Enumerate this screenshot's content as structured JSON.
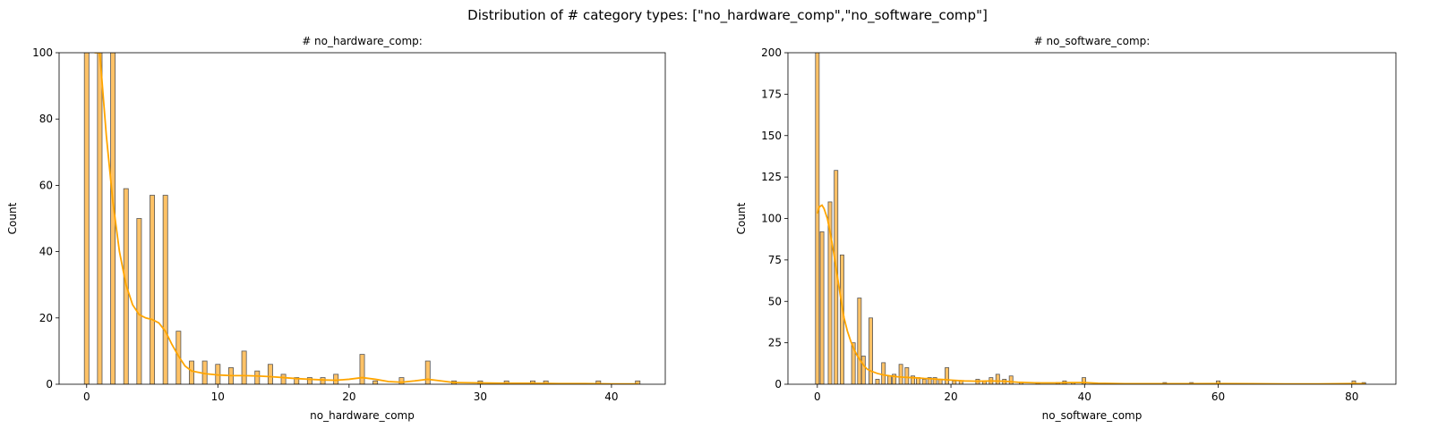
{
  "figure": {
    "suptitle": "Distribution of # category types: [\"no_hardware_comp\",\"no_software_comp\"]",
    "bar_color": "#ffc266",
    "bar_edge": "#555555",
    "kde_color": "#ffa500"
  },
  "chart_data": [
    {
      "type": "bar",
      "title": "# no_hardware_comp:",
      "xlabel": "no_hardware_comp",
      "ylabel": "Count",
      "xlim": [
        -2.1,
        44.1
      ],
      "ylim": [
        0,
        100
      ],
      "xticks": [
        0,
        10,
        20,
        30,
        40
      ],
      "yticks": [
        0,
        20,
        40,
        60,
        80,
        100
      ],
      "bin_width": 0.35,
      "bars": [
        {
          "x": 0,
          "count": 100
        },
        {
          "x": 1,
          "count": 100
        },
        {
          "x": 2,
          "count": 100
        },
        {
          "x": 3,
          "count": 59
        },
        {
          "x": 4,
          "count": 50
        },
        {
          "x": 5,
          "count": 57
        },
        {
          "x": 6,
          "count": 57
        },
        {
          "x": 7,
          "count": 16
        },
        {
          "x": 8,
          "count": 7
        },
        {
          "x": 9,
          "count": 7
        },
        {
          "x": 10,
          "count": 6
        },
        {
          "x": 11,
          "count": 5
        },
        {
          "x": 12,
          "count": 10
        },
        {
          "x": 13,
          "count": 4
        },
        {
          "x": 14,
          "count": 6
        },
        {
          "x": 15,
          "count": 3
        },
        {
          "x": 16,
          "count": 2
        },
        {
          "x": 17,
          "count": 2
        },
        {
          "x": 18,
          "count": 2
        },
        {
          "x": 19,
          "count": 3
        },
        {
          "x": 21,
          "count": 9
        },
        {
          "x": 22,
          "count": 1
        },
        {
          "x": 24,
          "count": 2
        },
        {
          "x": 26,
          "count": 7
        },
        {
          "x": 28,
          "count": 1
        },
        {
          "x": 30,
          "count": 1
        },
        {
          "x": 32,
          "count": 1
        },
        {
          "x": 34,
          "count": 1
        },
        {
          "x": 35,
          "count": 1
        },
        {
          "x": 39,
          "count": 1
        },
        {
          "x": 42,
          "count": 1
        }
      ],
      "kde": [
        [
          0.6,
          124
        ],
        [
          1,
          100
        ],
        [
          1.5,
          75
        ],
        [
          2,
          55
        ],
        [
          2.5,
          40
        ],
        [
          3,
          30
        ],
        [
          3.5,
          24
        ],
        [
          4,
          21
        ],
        [
          4.5,
          20
        ],
        [
          5,
          19.5
        ],
        [
          5.5,
          18.5
        ],
        [
          6,
          16
        ],
        [
          6.5,
          12
        ],
        [
          7,
          8.5
        ],
        [
          7.5,
          5.5
        ],
        [
          8,
          4
        ],
        [
          9,
          3.2
        ],
        [
          10,
          2.8
        ],
        [
          11,
          2.6
        ],
        [
          12,
          2.6
        ],
        [
          13,
          2.5
        ],
        [
          14,
          2.3
        ],
        [
          15,
          2
        ],
        [
          16,
          1.7
        ],
        [
          17,
          1.5
        ],
        [
          18,
          1.3
        ],
        [
          19,
          1.2
        ],
        [
          20,
          1.5
        ],
        [
          21,
          2
        ],
        [
          22,
          1.5
        ],
        [
          23,
          0.8
        ],
        [
          24,
          0.6
        ],
        [
          25,
          1
        ],
        [
          26,
          1.5
        ],
        [
          27,
          1
        ],
        [
          28,
          0.5
        ],
        [
          30,
          0.4
        ],
        [
          32,
          0.3
        ],
        [
          34,
          0.3
        ],
        [
          36,
          0.2
        ],
        [
          38,
          0.2
        ],
        [
          40,
          0.1
        ],
        [
          42,
          0.1
        ]
      ]
    },
    {
      "type": "bar",
      "title": "# no_software_comp:",
      "xlabel": "no_software_comp",
      "ylabel": "Count",
      "xlim": [
        -4.4,
        86.6
      ],
      "ylim": [
        0,
        200
      ],
      "xticks": [
        0,
        20,
        40,
        60,
        80
      ],
      "yticks": [
        0,
        25,
        50,
        75,
        100,
        125,
        150,
        175,
        200
      ],
      "bin_width": 0.55,
      "bars": [
        {
          "x": 0,
          "count": 200
        },
        {
          "x": 0.7,
          "count": 92
        },
        {
          "x": 1.9,
          "count": 110
        },
        {
          "x": 2.8,
          "count": 129
        },
        {
          "x": 3.7,
          "count": 78
        },
        {
          "x": 5.4,
          "count": 25
        },
        {
          "x": 6.3,
          "count": 52
        },
        {
          "x": 6.9,
          "count": 17
        },
        {
          "x": 8,
          "count": 40
        },
        {
          "x": 9,
          "count": 3
        },
        {
          "x": 9.9,
          "count": 13
        },
        {
          "x": 10.8,
          "count": 5
        },
        {
          "x": 11.5,
          "count": 6
        },
        {
          "x": 12.5,
          "count": 12
        },
        {
          "x": 13.4,
          "count": 10
        },
        {
          "x": 14.3,
          "count": 5
        },
        {
          "x": 15.1,
          "count": 4
        },
        {
          "x": 16,
          "count": 3
        },
        {
          "x": 16.8,
          "count": 4
        },
        {
          "x": 17.6,
          "count": 4
        },
        {
          "x": 18.4,
          "count": 3
        },
        {
          "x": 19.4,
          "count": 10
        },
        {
          "x": 20.5,
          "count": 2
        },
        {
          "x": 21.5,
          "count": 2
        },
        {
          "x": 24,
          "count": 3
        },
        {
          "x": 25,
          "count": 2
        },
        {
          "x": 26,
          "count": 4
        },
        {
          "x": 27,
          "count": 6
        },
        {
          "x": 28,
          "count": 3
        },
        {
          "x": 29,
          "count": 5
        },
        {
          "x": 30.5,
          "count": 1
        },
        {
          "x": 33,
          "count": 1
        },
        {
          "x": 36,
          "count": 1
        },
        {
          "x": 37,
          "count": 2
        },
        {
          "x": 38.3,
          "count": 1
        },
        {
          "x": 39.9,
          "count": 4
        },
        {
          "x": 52,
          "count": 1
        },
        {
          "x": 56,
          "count": 1
        },
        {
          "x": 60,
          "count": 2
        },
        {
          "x": 80.3,
          "count": 2
        },
        {
          "x": 81.8,
          "count": 1
        }
      ],
      "kde": [
        [
          0,
          103
        ],
        [
          0.3,
          107
        ],
        [
          0.7,
          108
        ],
        [
          1,
          106
        ],
        [
          1.5,
          100
        ],
        [
          2,
          90
        ],
        [
          2.5,
          78
        ],
        [
          3,
          65
        ],
        [
          3.5,
          52
        ],
        [
          4,
          40
        ],
        [
          4.5,
          32
        ],
        [
          5,
          26
        ],
        [
          5.5,
          21
        ],
        [
          6,
          17
        ],
        [
          6.5,
          14
        ],
        [
          7,
          11
        ],
        [
          7.5,
          9
        ],
        [
          8,
          8
        ],
        [
          9,
          6.5
        ],
        [
          10,
          5.5
        ],
        [
          11,
          5
        ],
        [
          12,
          4.5
        ],
        [
          13,
          4.2
        ],
        [
          14,
          4
        ],
        [
          15,
          3.8
        ],
        [
          16,
          3.5
        ],
        [
          17,
          3.3
        ],
        [
          18,
          3
        ],
        [
          19,
          2.8
        ],
        [
          20,
          2.5
        ],
        [
          22,
          2
        ],
        [
          24,
          1.8
        ],
        [
          26,
          2
        ],
        [
          28,
          1.8
        ],
        [
          30,
          1.2
        ],
        [
          33,
          0.8
        ],
        [
          36,
          0.8
        ],
        [
          38,
          1
        ],
        [
          40,
          1
        ],
        [
          42,
          0.6
        ],
        [
          46,
          0.3
        ],
        [
          50,
          0.3
        ],
        [
          55,
          0.3
        ],
        [
          60,
          0.4
        ],
        [
          65,
          0.3
        ],
        [
          70,
          0.2
        ],
        [
          75,
          0.2
        ],
        [
          80,
          0.4
        ],
        [
          82,
          0.3
        ]
      ]
    }
  ]
}
